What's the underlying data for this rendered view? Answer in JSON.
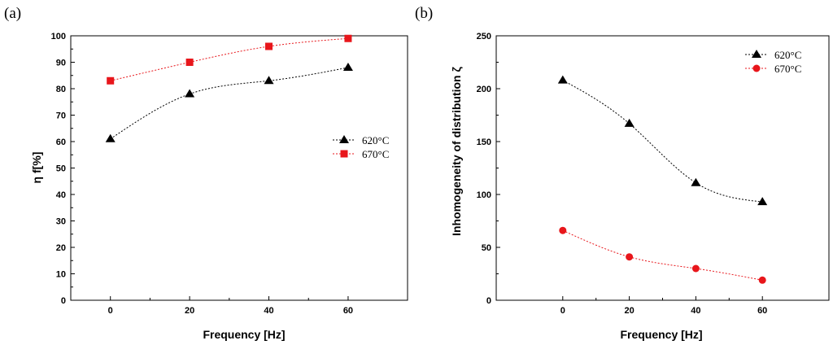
{
  "chart_data": [
    {
      "type": "line",
      "panel_label": "(a)",
      "xlabel": "Frequency [Hz]",
      "ylabel": "η f[%]",
      "xlim": [
        -10,
        75
      ],
      "ylim": [
        0,
        100
      ],
      "xticks": [
        0,
        20,
        40,
        60
      ],
      "yticks": [
        0,
        10,
        20,
        30,
        40,
        50,
        60,
        70,
        80,
        90,
        100
      ],
      "legend_position": "middle-right",
      "series": [
        {
          "name": "620°C",
          "color": "#000000",
          "marker": "triangle",
          "x": [
            0,
            20,
            40,
            60
          ],
          "values": [
            61,
            78,
            83,
            88
          ]
        },
        {
          "name": "670°C",
          "color": "#e8161b",
          "marker": "square",
          "x": [
            0,
            20,
            40,
            60
          ],
          "values": [
            83,
            90,
            96,
            99
          ]
        }
      ]
    },
    {
      "type": "line",
      "panel_label": "(b)",
      "xlabel": "Frequency [Hz]",
      "ylabel": "Inhomogeneity of distribution ζ",
      "xlim": [
        -20,
        80
      ],
      "ylim": [
        0,
        250
      ],
      "xticks": [
        0,
        20,
        40,
        60
      ],
      "yticks": [
        0,
        50,
        100,
        150,
        200,
        250
      ],
      "legend_position": "top-right",
      "series": [
        {
          "name": "620°C",
          "color": "#000000",
          "marker": "triangle",
          "x": [
            0,
            20,
            40,
            60
          ],
          "values": [
            208,
            167,
            111,
            93
          ]
        },
        {
          "name": "670°C",
          "color": "#e8161b",
          "marker": "circle",
          "x": [
            0,
            20,
            40,
            60
          ],
          "values": [
            66,
            41,
            30,
            19
          ]
        }
      ]
    }
  ]
}
